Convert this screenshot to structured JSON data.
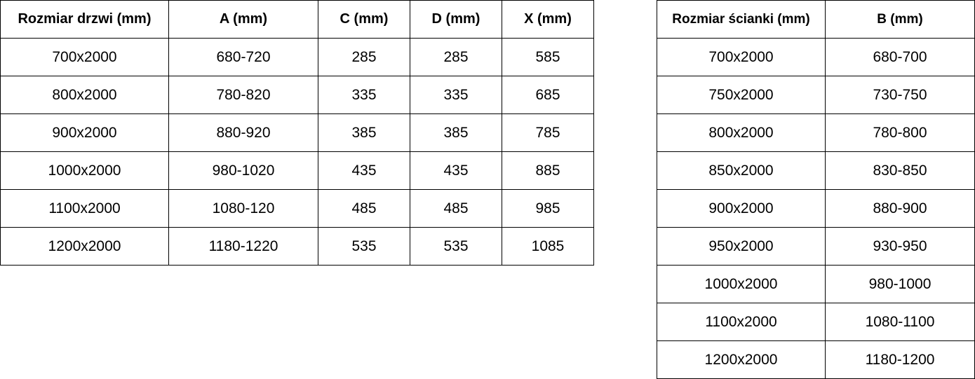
{
  "door_table": {
    "headers": [
      "Rozmiar drzwi (mm)",
      "A (mm)",
      "C (mm)",
      "D (mm)",
      "X (mm)"
    ],
    "rows": [
      [
        "700x2000",
        "680-720",
        "285",
        "285",
        "585"
      ],
      [
        "800x2000",
        "780-820",
        "335",
        "335",
        "685"
      ],
      [
        "900x2000",
        "880-920",
        "385",
        "385",
        "785"
      ],
      [
        "1000x2000",
        "980-1020",
        "435",
        "435",
        "885"
      ],
      [
        "1100x2000",
        "1080-120",
        "485",
        "485",
        "985"
      ],
      [
        "1200x2000",
        "1180-1220",
        "535",
        "535",
        "1085"
      ]
    ]
  },
  "wall_table": {
    "headers": [
      "Rozmiar ścianki (mm)",
      "B (mm)"
    ],
    "rows": [
      [
        "700x2000",
        "680-700"
      ],
      [
        "750x2000",
        "730-750"
      ],
      [
        "800x2000",
        "780-800"
      ],
      [
        "850x2000",
        "830-850"
      ],
      [
        "900x2000",
        "880-900"
      ],
      [
        "950x2000",
        "930-950"
      ],
      [
        "1000x2000",
        "980-1000"
      ],
      [
        "1100x2000",
        "1080-1100"
      ],
      [
        "1200x2000",
        "1180-1200"
      ]
    ]
  }
}
